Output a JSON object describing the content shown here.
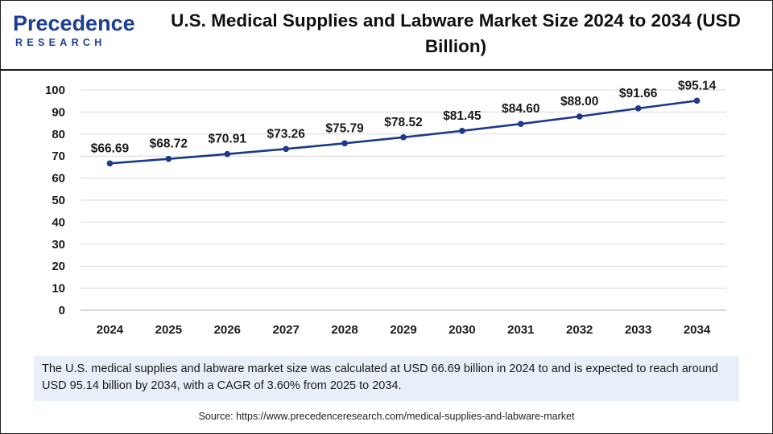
{
  "logo": {
    "main": "Precedence",
    "sub": "RESEARCH"
  },
  "title": "U.S. Medical Supplies and Labware Market Size 2024 to 2034 (USD Billion)",
  "chart_data": {
    "type": "line",
    "title": "U.S. Medical Supplies and Labware Market Size 2024 to 2034 (USD Billion)",
    "xlabel": "",
    "ylabel": "",
    "categories": [
      "2024",
      "2025",
      "2026",
      "2027",
      "2028",
      "2029",
      "2030",
      "2031",
      "2032",
      "2033",
      "2034"
    ],
    "values": [
      66.69,
      68.72,
      70.91,
      73.26,
      75.79,
      78.52,
      81.45,
      84.6,
      88.0,
      91.66,
      95.14
    ],
    "data_labels": [
      "$66.69",
      "$68.72",
      "$70.91",
      "$73.26",
      "$75.79",
      "$78.52",
      "$81.45",
      "$84.60",
      "$88.00",
      "$91.66",
      "$95.14"
    ],
    "ylim": [
      0,
      100
    ],
    "yticks": [
      "0",
      "10",
      "20",
      "30",
      "40",
      "50",
      "60",
      "70",
      "80",
      "90",
      "100"
    ],
    "grid": true,
    "line_color": "#1c3a8a"
  },
  "note": "The U.S. medical supplies and labware market  size was calculated at USD 66.69 billion in 2024 to and is expected to reach around USD 95.14 billion by 2034, with a CAGR of 3.60% from 2025 to 2034.",
  "source": "Source: https://www.precedenceresearch.com/medical-supplies-and-labware-market"
}
